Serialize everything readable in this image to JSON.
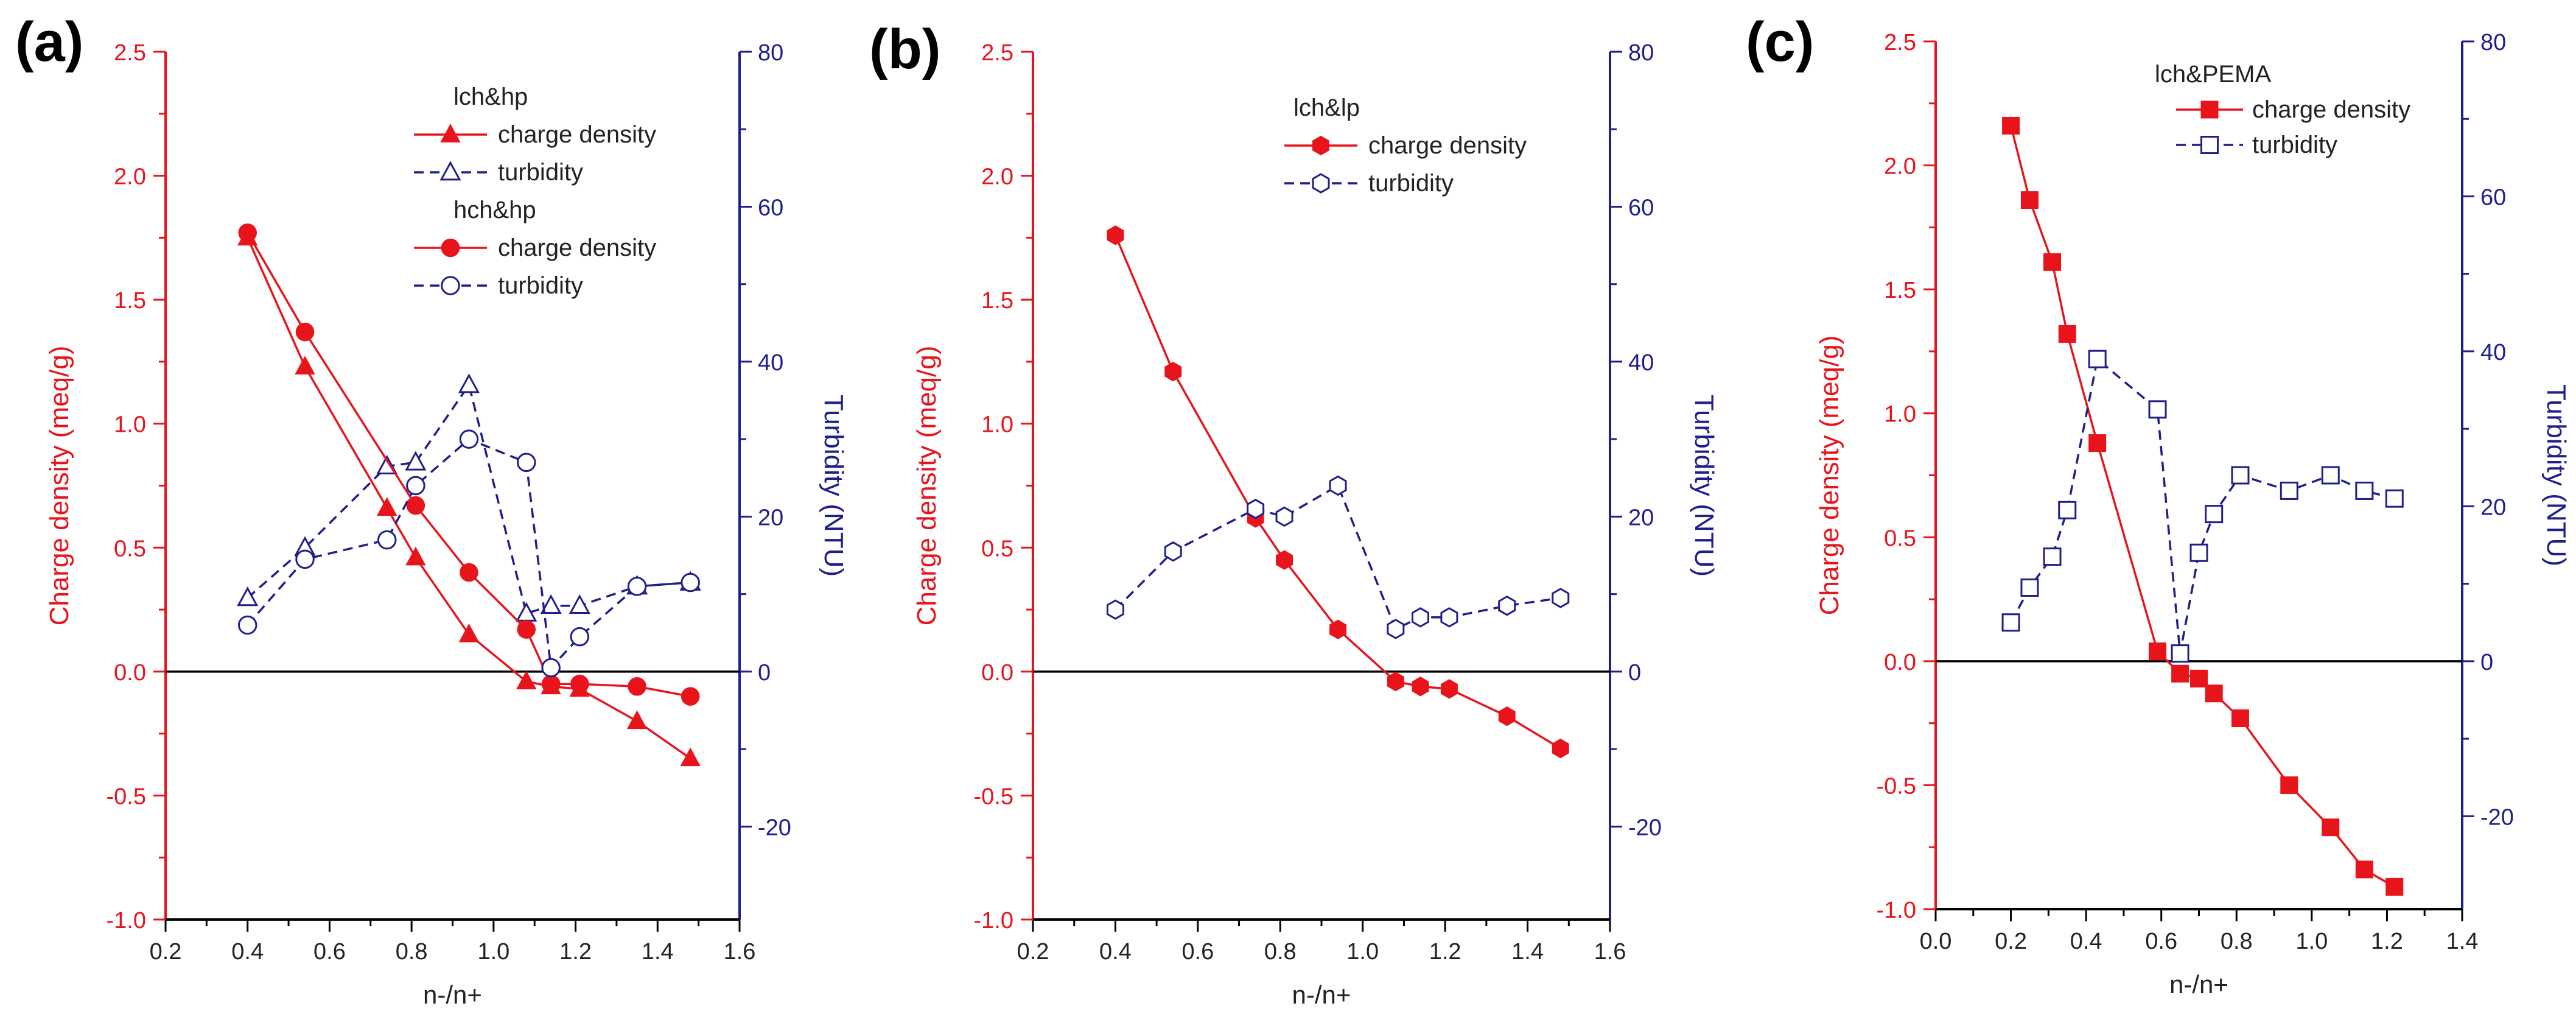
{
  "colors": {
    "left_axis": "#e8141c",
    "right_axis": "#1f1f8c",
    "zero_line": "#000000"
  },
  "chart_data": [
    {
      "type": "line",
      "panel_label": "(a)",
      "xlabel": "n-/n+",
      "ylabel": "Charge density (meq/g)",
      "y2label": "Turbidity (NTU)",
      "xlim": [
        0.2,
        1.6
      ],
      "ylim": [
        -1.0,
        2.5
      ],
      "y2lim": [
        -32,
        80
      ],
      "xticks": [
        "0.2",
        "0.4",
        "0.6",
        "0.8",
        "1.0",
        "1.2",
        "1.4",
        "1.6"
      ],
      "yticks": [
        "-1.0",
        "-0.5",
        "0.0",
        "0.5",
        "1.0",
        "1.5",
        "2.0",
        "2.5"
      ],
      "y2ticks": [
        "-20",
        "0",
        "20",
        "40",
        "60",
        "80"
      ],
      "legend": {
        "placement": "top-right",
        "groups": [
          {
            "title": "lch&hp",
            "entries": [
              "charge density",
              "turbidity"
            ]
          },
          {
            "title": "hch&hp",
            "entries": [
              "charge density",
              "turbidity"
            ]
          }
        ]
      },
      "series": [
        {
          "group": "lch&hp",
          "name": "charge density",
          "axis": "left",
          "marker": "triangle",
          "filled": true,
          "dashed": false,
          "x": [
            0.4,
            0.54,
            0.74,
            0.81,
            0.94,
            1.08,
            1.14,
            1.21,
            1.35,
            1.48
          ],
          "y": [
            1.75,
            1.23,
            0.66,
            0.46,
            0.15,
            -0.04,
            -0.06,
            -0.07,
            -0.2,
            -0.35
          ]
        },
        {
          "group": "lch&hp",
          "name": "turbidity",
          "axis": "right",
          "marker": "triangle",
          "filled": false,
          "dashed": true,
          "x": [
            0.4,
            0.54,
            0.74,
            0.81,
            0.94,
            1.08,
            1.14,
            1.21,
            1.35,
            1.48
          ],
          "y": [
            9.5,
            16.0,
            26.5,
            27.0,
            37.0,
            7.5,
            8.5,
            8.5,
            11.0,
            11.5
          ]
        },
        {
          "group": "hch&hp",
          "name": "charge density",
          "axis": "left",
          "marker": "circle",
          "filled": true,
          "dashed": false,
          "x": [
            0.4,
            0.54,
            0.81,
            0.94,
            1.08,
            1.14,
            1.21,
            1.35,
            1.48
          ],
          "y": [
            1.77,
            1.37,
            0.67,
            0.4,
            0.17,
            -0.05,
            -0.05,
            -0.06,
            -0.1
          ]
        },
        {
          "group": "hch&hp",
          "name": "turbidity",
          "axis": "right",
          "marker": "circle",
          "filled": false,
          "dashed": true,
          "x": [
            0.4,
            0.54,
            0.74,
            0.81,
            0.94,
            1.08,
            1.14,
            1.21,
            1.35,
            1.48
          ],
          "y": [
            6.0,
            14.5,
            17.0,
            24.0,
            30.0,
            27.0,
            0.5,
            4.5,
            11.0,
            11.5
          ]
        }
      ]
    },
    {
      "type": "line",
      "panel_label": "(b)",
      "xlabel": "n-/n+",
      "ylabel": "Charge density (meq/g)",
      "y2label": "Turbidity (NTU)",
      "xlim": [
        0.2,
        1.6
      ],
      "ylim": [
        -1.0,
        2.5
      ],
      "y2lim": [
        -32,
        80
      ],
      "xticks": [
        "0.2",
        "0.4",
        "0.6",
        "0.8",
        "1.0",
        "1.2",
        "1.4",
        "1.6"
      ],
      "yticks": [
        "-1.0",
        "-0.5",
        "0.0",
        "0.5",
        "1.0",
        "1.5",
        "2.0",
        "2.5"
      ],
      "y2ticks": [
        "-20",
        "0",
        "20",
        "40",
        "60",
        "80"
      ],
      "legend": {
        "placement": "top-right",
        "groups": [
          {
            "title": "lch&lp",
            "entries": [
              "charge density",
              "turbidity"
            ]
          }
        ]
      },
      "series": [
        {
          "group": "lch&lp",
          "name": "charge density",
          "axis": "left",
          "marker": "hexagon",
          "filled": true,
          "dashed": false,
          "x": [
            0.4,
            0.54,
            0.74,
            0.81,
            0.94,
            1.08,
            1.14,
            1.21,
            1.35,
            1.48
          ],
          "y": [
            1.76,
            1.21,
            0.62,
            0.45,
            0.17,
            -0.04,
            -0.06,
            -0.07,
            -0.18,
            -0.31
          ]
        },
        {
          "group": "lch&lp",
          "name": "turbidity",
          "axis": "right",
          "marker": "hexagon",
          "filled": false,
          "dashed": true,
          "x": [
            0.4,
            0.54,
            0.74,
            0.81,
            0.94,
            1.08,
            1.14,
            1.21,
            1.35,
            1.48
          ],
          "y": [
            8.0,
            15.5,
            21.0,
            20.0,
            24.0,
            5.5,
            7.0,
            7.0,
            8.5,
            9.5
          ]
        }
      ]
    },
    {
      "type": "line",
      "panel_label": "(c)",
      "xlabel": "n-/n+",
      "ylabel": "Charge density (meq/g)",
      "y2label": "Turbidity (NTU)",
      "xlim": [
        0.0,
        1.4
      ],
      "ylim": [
        -1.0,
        2.5
      ],
      "y2lim": [
        -32,
        80
      ],
      "xticks": [
        "0.0",
        "0.2",
        "0.4",
        "0.6",
        "0.8",
        "1.0",
        "1.2",
        "1.4"
      ],
      "yticks": [
        "-1.0",
        "-0.5",
        "0.0",
        "0.5",
        "1.0",
        "1.5",
        "2.0",
        "2.5"
      ],
      "y2ticks": [
        "-20",
        "0",
        "20",
        "40",
        "60",
        "80"
      ],
      "legend": {
        "placement": "top-right",
        "groups": [
          {
            "title": "lch&PEMA",
            "entries": [
              "charge density",
              "turbidity"
            ]
          }
        ]
      },
      "series": [
        {
          "group": "lch&PEMA",
          "name": "charge density",
          "axis": "left",
          "marker": "square",
          "filled": true,
          "dashed": false,
          "x": [
            0.2,
            0.25,
            0.31,
            0.35,
            0.43,
            0.59,
            0.65,
            0.7,
            0.74,
            0.81,
            0.94,
            1.05,
            1.14,
            1.22
          ],
          "y": [
            2.16,
            1.86,
            1.61,
            1.32,
            0.88,
            0.04,
            -0.05,
            -0.07,
            -0.13,
            -0.23,
            -0.5,
            -0.67,
            -0.84,
            -0.91
          ]
        },
        {
          "group": "lch&PEMA",
          "name": "turbidity",
          "axis": "right",
          "marker": "square",
          "filled": false,
          "dashed": true,
          "x": [
            0.2,
            0.25,
            0.31,
            0.35,
            0.43,
            0.59,
            0.65,
            0.7,
            0.74,
            0.81,
            0.94,
            1.05,
            1.14,
            1.22
          ],
          "y": [
            5.0,
            9.5,
            13.5,
            19.5,
            39.0,
            32.5,
            1.0,
            14.0,
            19.0,
            24.0,
            22.0,
            24.0,
            22.0,
            21.0
          ]
        }
      ]
    }
  ]
}
